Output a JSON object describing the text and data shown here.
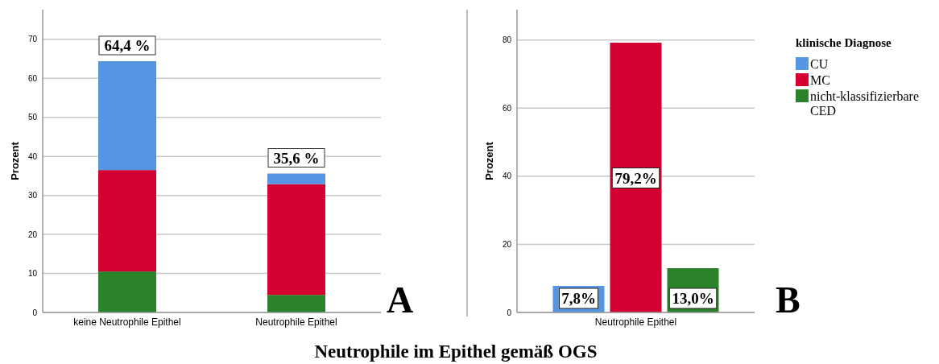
{
  "chart_data": [
    {
      "type": "bar",
      "title": "Neutrophile im Epithel gemäß OGS",
      "ylabel": "Prozent",
      "categories": [
        "keine Neutrophile Epithel",
        "Neutrophile Epithel"
      ],
      "stacked": true,
      "series": [
        {
          "color": "#2a832a",
          "values": [
            10.5,
            4.5
          ]
        },
        {
          "color": "#d30031",
          "values": [
            26.0,
            28.4
          ]
        },
        {
          "color": "#5596e2",
          "values": [
            27.9,
            2.7
          ]
        }
      ],
      "totals": [
        "64,4 %",
        "35,6 %"
      ],
      "ylim": [
        0,
        77.6
      ],
      "yticks": [
        0,
        10,
        20,
        30,
        40,
        50,
        60,
        70
      ],
      "grid": "y",
      "legend": false,
      "annotations": [
        "A"
      ]
    },
    {
      "type": "bar",
      "ylabel": "Prozent",
      "categories": [
        "Neutrophile Epithel"
      ],
      "legend_title": "klinische Diagnose",
      "series": [
        {
          "name": "CU",
          "color": "#5596e2",
          "values": [
            7.8
          ],
          "value_labels": [
            "7,8%"
          ]
        },
        {
          "name": "MC",
          "color": "#d30031",
          "values": [
            79.2
          ],
          "value_labels": [
            "79,2%"
          ]
        },
        {
          "name": "nicht-klassifizierbare CED",
          "color": "#2a832a",
          "values": [
            13.0
          ],
          "value_labels": [
            "13,0%"
          ]
        }
      ],
      "ylim": [
        0,
        88.9
      ],
      "yticks": [
        0,
        20,
        40,
        60,
        80
      ],
      "grid": "y",
      "legend": "right",
      "annotations": [
        "B"
      ]
    }
  ]
}
